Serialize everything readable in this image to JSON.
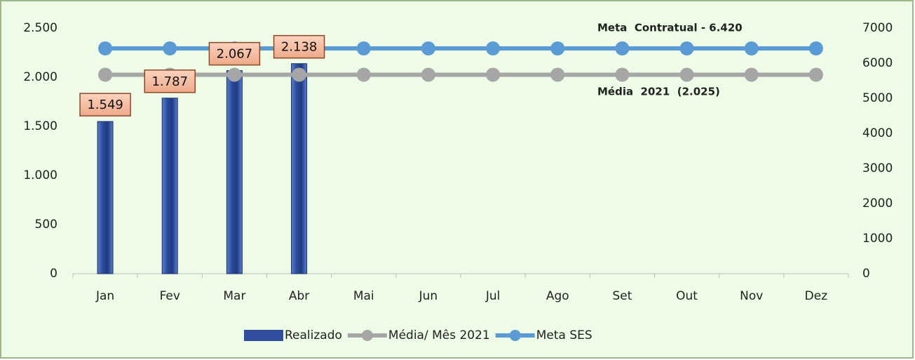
{
  "chart_data": {
    "type": "bar-line",
    "categories": [
      "Jan",
      "Fev",
      "Mar",
      "Abr",
      "Mai",
      "Jun",
      "Jul",
      "Ago",
      "Set",
      "Out",
      "Nov",
      "Dez"
    ],
    "series": [
      {
        "name": "Realizado",
        "type": "bar",
        "color": "#2f4f9e",
        "axis": "y",
        "values": [
          1549,
          1787,
          2067,
          2138,
          null,
          null,
          null,
          null,
          null,
          null,
          null,
          null
        ],
        "value_labels": [
          "1.549",
          "1.787",
          "2.067",
          "2.138",
          null,
          null,
          null,
          null,
          null,
          null,
          null,
          null
        ]
      },
      {
        "name": "Média/ Mês 2021",
        "type": "line",
        "color": "#a6a6a6",
        "axis": "y",
        "values": [
          2025,
          2025,
          2025,
          2025,
          2025,
          2025,
          2025,
          2025,
          2025,
          2025,
          2025,
          2025
        ]
      },
      {
        "name": "Meta SES",
        "type": "line",
        "color": "#5b9bd5",
        "axis": "y2",
        "values": [
          6420,
          6420,
          6420,
          6420,
          6420,
          6420,
          6420,
          6420,
          6420,
          6420,
          6420,
          6420
        ]
      }
    ],
    "ylim": [
      0,
      2500
    ],
    "yticks": [
      {
        "value": 0,
        "label": "0"
      },
      {
        "value": 500,
        "label": "500"
      },
      {
        "value": 1000,
        "label": "1.000"
      },
      {
        "value": 1500,
        "label": "1.500"
      },
      {
        "value": 2000,
        "label": "2.000"
      },
      {
        "value": 2500,
        "label": "2.500"
      }
    ],
    "y2lim": [
      0,
      7000
    ],
    "y2ticks": [
      0,
      1000,
      2000,
      3000,
      4000,
      5000,
      6000,
      7000
    ],
    "annotations": [
      "Meta  Contratual - 6.420",
      "Média  2021  (2.025)"
    ],
    "grid": false,
    "legend": "bottom"
  }
}
